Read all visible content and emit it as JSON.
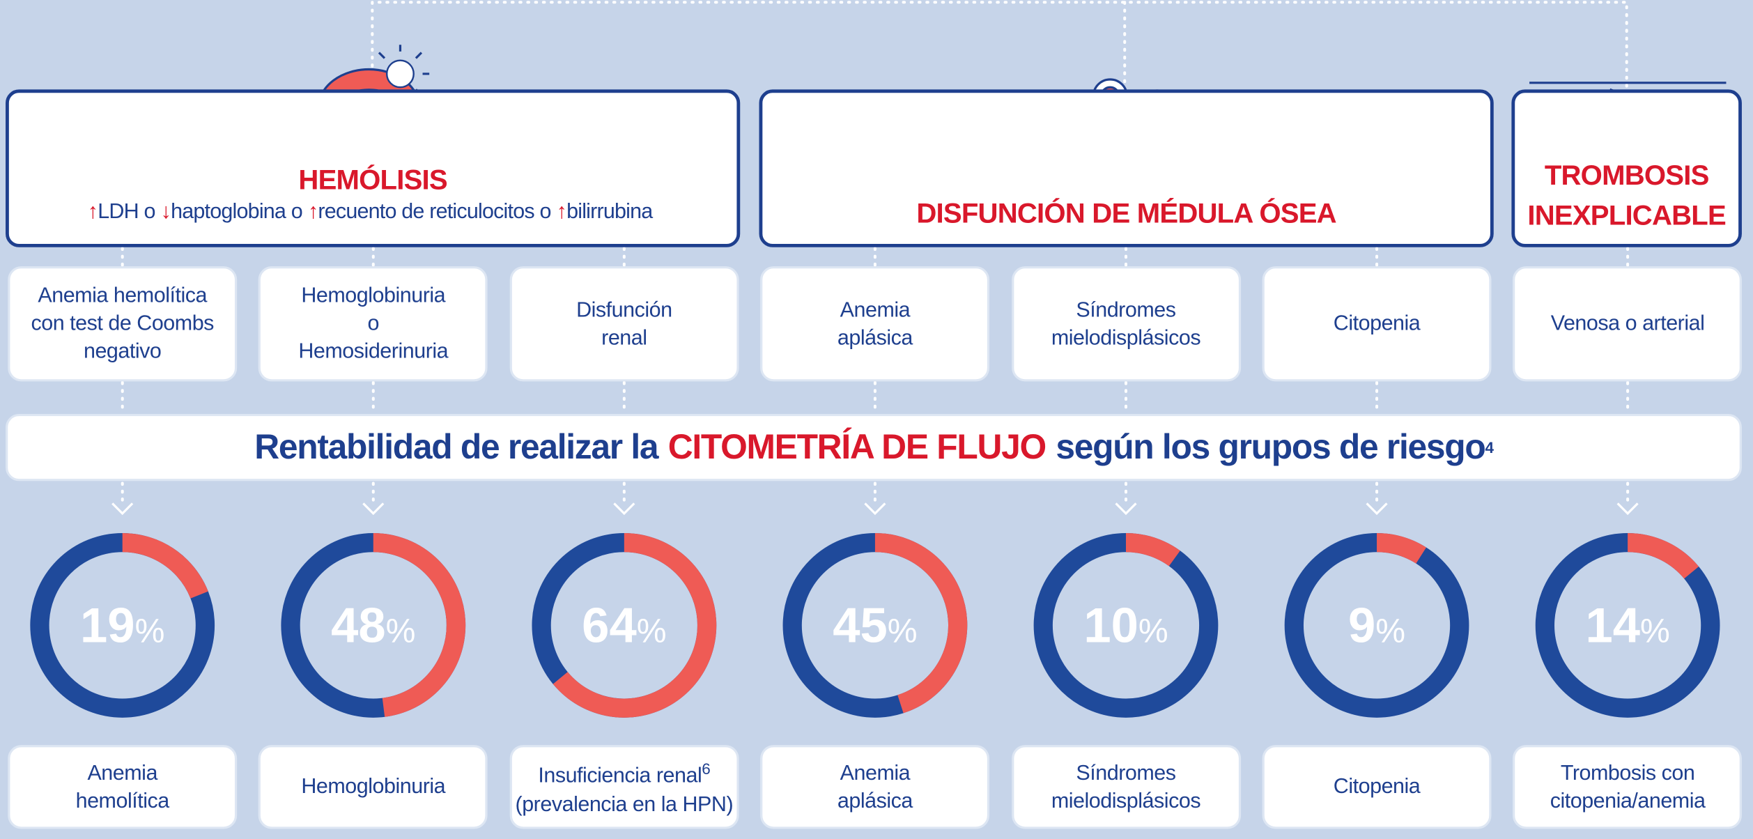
{
  "groups": [
    {
      "title": "HEMÓLISIS",
      "markers": [
        {
          "arrow": "↑",
          "text": "LDH o"
        },
        {
          "arrow": "↓",
          "text": "haptoglobina o"
        },
        {
          "arrow": "↑",
          "text": "recuento de reticulocitos o"
        },
        {
          "arrow": "↑",
          "text": "bilirrubina"
        }
      ]
    },
    {
      "title": "DISFUNCIÓN DE MÉDULA ÓSEA"
    },
    {
      "title": "TROMBOSIS\nINEXPLICABLE"
    }
  ],
  "findings": [
    "Anemia hemolítica\ncon test de Coombs\nnegativo",
    "Hemoglobinuria\no\nHemosiderinuria",
    "Disfunción\nrenal",
    "Anemia\naplásica",
    "Síndromes\nmielodisplásicos",
    "Citopenia",
    "Venosa o arterial"
  ],
  "banner": {
    "before": "Rentabilidad de realizar la",
    "highlight": "CITOMETRÍA DE FLUJO",
    "after": "según los grupos de riesgo",
    "ref": "4"
  },
  "chart_data": {
    "type": "donut",
    "categories": [
      [
        "Anemia",
        "hemolítica"
      ],
      [
        "Hemoglobinuria"
      ],
      [
        "Insuficiencia renal",
        "(prevalencia en la HPN)"
      ],
      [
        "Anemia",
        "aplásica"
      ],
      [
        "Síndromes",
        "mielodisplásicos"
      ],
      [
        "Citopenia"
      ],
      [
        "Trombosis con",
        "citopenia/anemia"
      ]
    ],
    "category_refs": [
      null,
      null,
      "6",
      null,
      null,
      null,
      null
    ],
    "values": [
      19,
      48,
      64,
      45,
      10,
      9,
      14
    ],
    "value_labels": [
      "19%",
      "48%",
      "64%",
      "45%",
      "10%",
      "9%",
      "14%"
    ],
    "color": "#ef5b55",
    "rest_color": "#1f4a9b"
  }
}
